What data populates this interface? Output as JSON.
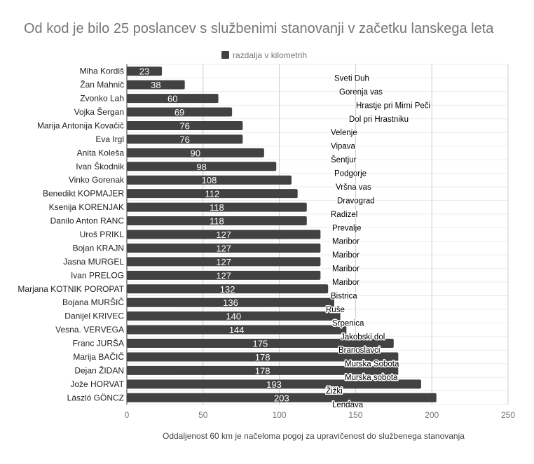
{
  "chart_data": {
    "type": "bar",
    "orientation": "horizontal",
    "title": "Od kod je bilo 25 poslancev s službenimi stanovanji v začetku lanskega leta",
    "legend": {
      "position": "top",
      "entries": [
        "razdalja v kilometrih"
      ]
    },
    "series": [
      {
        "name": "razdalja v kilometrih",
        "color": "#424242",
        "values": [
          23,
          38,
          60,
          69,
          76,
          76,
          90,
          98,
          108,
          112,
          118,
          118,
          127,
          127,
          127,
          127,
          132,
          136,
          140,
          144,
          175,
          178,
          178,
          193,
          203
        ]
      }
    ],
    "categories": [
      "Miha Kordiš",
      "Žan Mahnič",
      "Zvonko Lah",
      "Vojka Šergan",
      "Marija Antonija Kovačič",
      "Eva Irgl",
      "Anita Koleša",
      "Ivan Škodnik",
      "Vinko Gorenak",
      "Benedikt KOPMAJER",
      "Ksenija KORENJAK",
      "Danilo Anton RANC",
      "Uroš PRIKL",
      "Bojan KRAJN",
      "Jasna MURGEL",
      "Ivan PRELOG",
      "Marjana KOTNIK POROPAT",
      "Bojana MURŠIČ",
      "Danijel KRIVEC",
      "Vesna. VERVEGA",
      "Franc JURŠA",
      "Marija BAČIČ",
      "Dejan ŽIDAN",
      "Jože HORVAT",
      "László GÖNCZ"
    ],
    "annotations": [
      "Sveti Duh",
      "Gorenja vas",
      "Hrastje pri Mirni Peči",
      "Dol pri Hrastniku",
      "Velenje",
      "Vipava",
      "Šentjur",
      "Podgorje",
      "Vršna vas",
      "Dravograd",
      "Radizel",
      "Prevalje",
      "Maribor",
      "Maribor",
      "Maribor",
      "Maribor",
      "Bistrica",
      "Ruše",
      "Srpenica",
      "Jakobski dol",
      "Branoslavci",
      "Murska Sobota",
      "Murska sobota",
      "Žižki",
      "Lendava"
    ],
    "xlim": [
      0,
      250
    ],
    "xticks": [
      "0",
      "50",
      "100",
      "150",
      "200",
      "250"
    ],
    "grid": true,
    "xlabel": "Oddaljenost 60 km je načeloma pogoj za upravičenost do službenega stanovanja"
  }
}
